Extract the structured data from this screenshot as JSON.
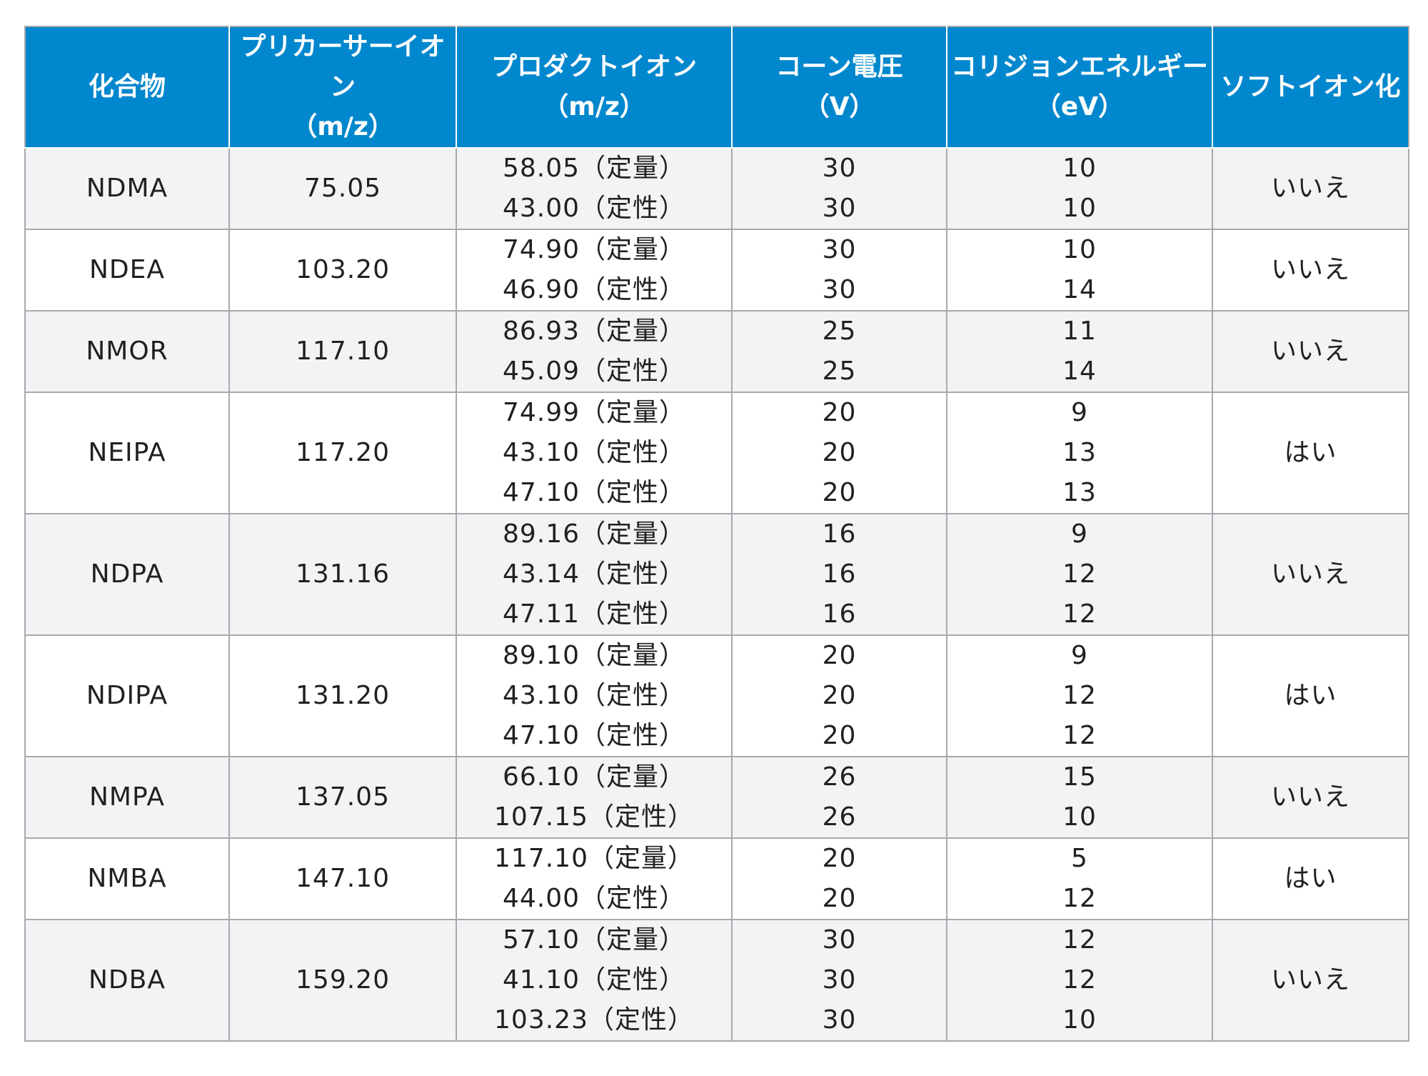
{
  "headers": [
    {
      "line1": "化合物",
      "line2": ""
    },
    {
      "line1": "プリカーサーイオン",
      "line2": "（m/z）"
    },
    {
      "line1": "プロダクトイオン",
      "line2": "（m/z）"
    },
    {
      "line1": "コーン電圧",
      "line2": "（V）"
    },
    {
      "line1": "コリジョンエネルギー",
      "line2": "（eV）"
    },
    {
      "line1": "ソフトイオン化",
      "line2": ""
    }
  ],
  "rows": [
    {
      "compound": "NDMA",
      "precursor": "75.05",
      "products": [
        "58.05（定量）",
        "43.00（定性）"
      ],
      "cone": [
        "30",
        "30"
      ],
      "collision": [
        "10",
        "10"
      ],
      "soft": "いいえ"
    },
    {
      "compound": "NDEA",
      "precursor": "103.20",
      "products": [
        "74.90（定量）",
        "46.90（定性）"
      ],
      "cone": [
        "30",
        "30"
      ],
      "collision": [
        "10",
        "14"
      ],
      "soft": "いいえ"
    },
    {
      "compound": "NMOR",
      "precursor": "117.10",
      "products": [
        "86.93（定量）",
        "45.09（定性）"
      ],
      "cone": [
        "25",
        "25"
      ],
      "collision": [
        "11",
        "14"
      ],
      "soft": "いいえ"
    },
    {
      "compound": "NEIPA",
      "precursor": "117.20",
      "products": [
        "74.99（定量）",
        "43.10（定性）",
        "47.10（定性）"
      ],
      "cone": [
        "20",
        "20",
        "20"
      ],
      "collision": [
        "9",
        "13",
        "13"
      ],
      "soft": "はい"
    },
    {
      "compound": "NDPA",
      "precursor": "131.16",
      "products": [
        "89.16（定量）",
        "43.14（定性）",
        "47.11（定性）"
      ],
      "cone": [
        "16",
        "16",
        "16"
      ],
      "collision": [
        "9",
        "12",
        "12"
      ],
      "soft": "いいえ"
    },
    {
      "compound": "NDIPA",
      "precursor": "131.20",
      "products": [
        "89.10（定量）",
        "43.10（定性）",
        "47.10（定性）"
      ],
      "cone": [
        "20",
        "20",
        "20"
      ],
      "collision": [
        "9",
        "12",
        "12"
      ],
      "soft": "はい"
    },
    {
      "compound": "NMPA",
      "precursor": "137.05",
      "products": [
        "66.10（定量）",
        "107.15（定性）"
      ],
      "cone": [
        "26",
        "26"
      ],
      "collision": [
        "15",
        "10"
      ],
      "soft": "いいえ"
    },
    {
      "compound": "NMBA",
      "precursor": "147.10",
      "products": [
        "117.10（定量）",
        "44.00（定性）"
      ],
      "cone": [
        "20",
        "20"
      ],
      "collision": [
        "5",
        "12"
      ],
      "soft": "はい"
    },
    {
      "compound": "NDBA",
      "precursor": "159.20",
      "products": [
        "57.10（定量）",
        "41.10（定性）",
        "103.23（定性）"
      ],
      "cone": [
        "30",
        "30",
        "30"
      ],
      "collision": [
        "12",
        "12",
        "10"
      ],
      "soft": "いいえ"
    }
  ]
}
